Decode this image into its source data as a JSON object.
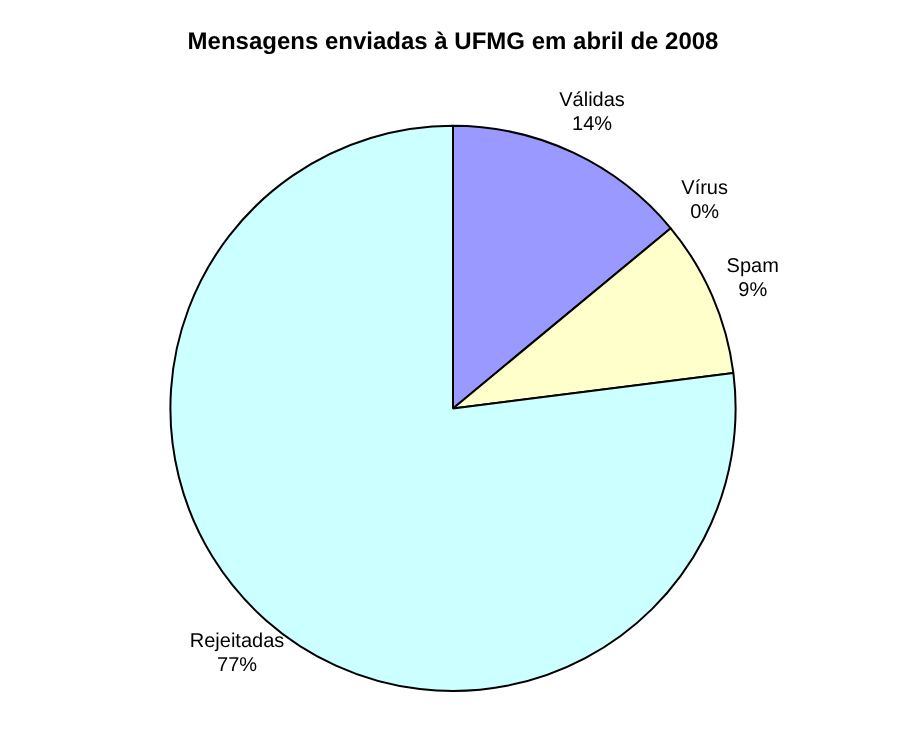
{
  "chart_data": {
    "type": "pie",
    "title": "Mensagens enviadas à UFMG em abril de 2008",
    "categories": [
      "Válidas",
      "Vírus",
      "Spam",
      "Rejeitadas"
    ],
    "values": [
      14,
      0,
      9,
      77
    ],
    "value_labels": [
      "14%",
      "0%",
      "9%",
      "77%"
    ],
    "colors": [
      "#9999ff",
      "#993366",
      "#ffffcc",
      "#ccffff"
    ],
    "legend": false
  }
}
